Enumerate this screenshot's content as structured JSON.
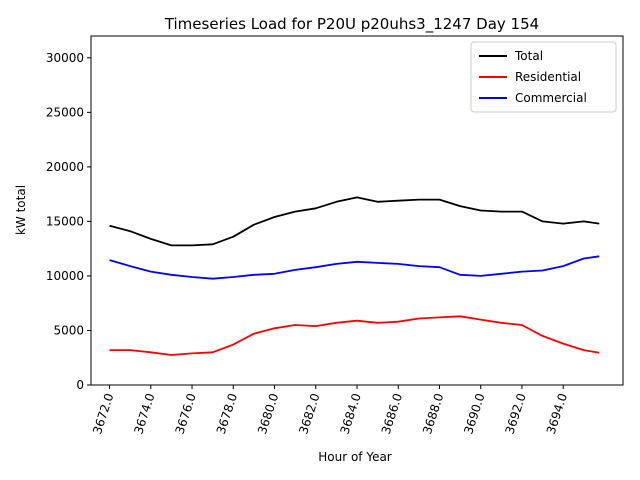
{
  "chart_data": {
    "type": "line",
    "title": "Timeseries Load for P20U p20uhs3_1247  Day 154",
    "xlabel": "Hour of Year",
    "ylabel": "kW total",
    "xlim": [
      3671.1,
      3696.9
    ],
    "ylim": [
      0,
      32000
    ],
    "xticks": [
      3672,
      3674,
      3676,
      3678,
      3680,
      3682,
      3684,
      3686,
      3688,
      3690,
      3692,
      3694
    ],
    "xtick_labels": [
      "3672.0",
      "3674.0",
      "3676.0",
      "3678.0",
      "3680.0",
      "3682.0",
      "3684.0",
      "3686.0",
      "3688.0",
      "3690.0",
      "3692.0",
      "3694.0"
    ],
    "yticks": [
      0,
      5000,
      10000,
      15000,
      20000,
      25000,
      30000
    ],
    "ytick_labels": [
      "0",
      "5000",
      "10000",
      "15000",
      "20000",
      "25000",
      "30000"
    ],
    "grid": false,
    "legend_position": "top-right",
    "x": [
      3672.0,
      3673.0,
      3674.0,
      3675.0,
      3676.0,
      3677.0,
      3678.0,
      3679.0,
      3680.0,
      3681.0,
      3682.0,
      3683.0,
      3684.0,
      3685.0,
      3686.0,
      3687.0,
      3688.0,
      3689.0,
      3690.0,
      3691.0,
      3692.0,
      3693.0,
      3694.0,
      3695.0,
      3695.75
    ],
    "series": [
      {
        "name": "Total",
        "color": "#000000",
        "values": [
          14600,
          14100,
          13400,
          12800,
          12800,
          12900,
          13600,
          14700,
          15400,
          15900,
          16200,
          16800,
          17200,
          16800,
          16900,
          17000,
          17000,
          16400,
          16000,
          15900,
          15900,
          15000,
          14800,
          15000,
          14800
        ]
      },
      {
        "name": "Residential",
        "color": "#ff0000",
        "values": [
          3200,
          3200,
          3000,
          2750,
          2900,
          3000,
          3700,
          4700,
          5200,
          5500,
          5400,
          5700,
          5900,
          5700,
          5800,
          6100,
          6200,
          6300,
          6000,
          5700,
          5500,
          4500,
          3800,
          3200,
          2950
        ]
      },
      {
        "name": "Commercial",
        "color": "#0000ff",
        "values": [
          11450,
          10900,
          10400,
          10100,
          9900,
          9750,
          9900,
          10100,
          10200,
          10550,
          10800,
          11100,
          11300,
          11200,
          11100,
          10900,
          10800,
          10100,
          10000,
          10200,
          10400,
          10500,
          10900,
          11600,
          11800
        ]
      }
    ]
  }
}
